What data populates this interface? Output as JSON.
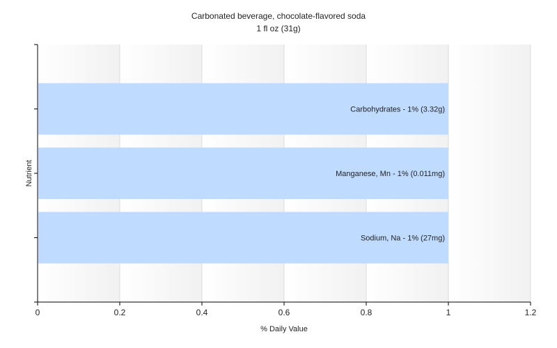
{
  "chart_data": {
    "type": "bar",
    "orientation": "horizontal",
    "title": "Carbonated beverage, chocolate-flavored soda",
    "subtitle": "1 fl oz (31g)",
    "xlabel": "% Daily Value",
    "ylabel": "Nutrient",
    "xlim": [
      0,
      1.2
    ],
    "xticks": [
      "0",
      "0.2",
      "0.4",
      "0.6",
      "0.8",
      "1",
      "1.2"
    ],
    "grid": true,
    "categories": [
      "Carbohydrates",
      "Manganese, Mn",
      "Sodium, Na"
    ],
    "values": [
      1,
      1,
      1
    ],
    "bar_labels": [
      "Carbohydrates - 1% (3.32g)",
      "Manganese, Mn - 1% (0.011mg)",
      "Sodium, Na - 1% (27mg)"
    ],
    "colors": {
      "bar": "#bfdbff",
      "grid": "#dddddd",
      "axis": "#000000"
    }
  }
}
